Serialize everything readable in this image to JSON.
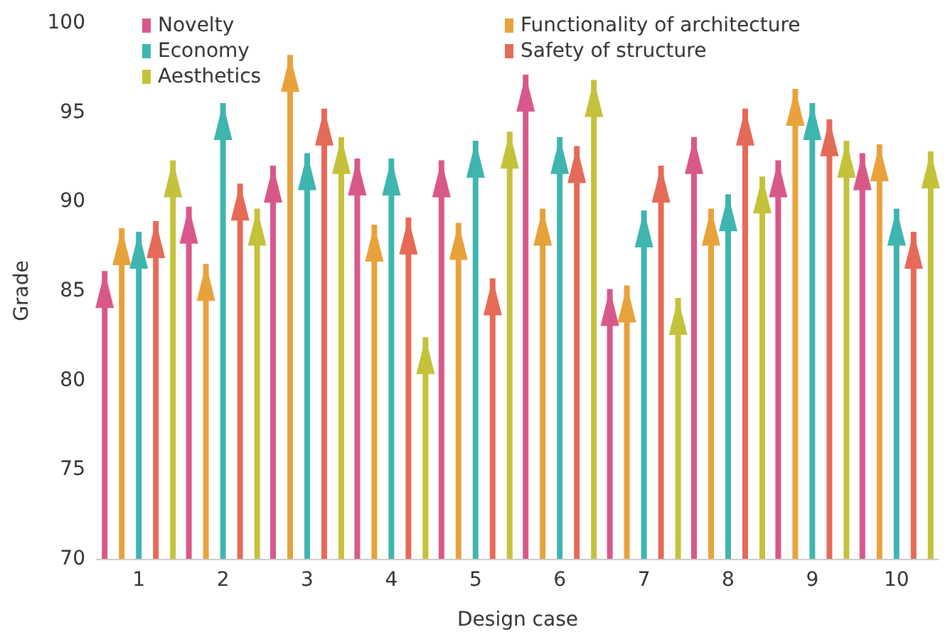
{
  "chart_data": {
    "type": "bar",
    "xlabel": "Design case",
    "ylabel": "Grade",
    "categories": [
      "1",
      "2",
      "3",
      "4",
      "5",
      "6",
      "7",
      "8",
      "9",
      "10"
    ],
    "ylim": [
      70,
      100
    ],
    "yticks": [
      70,
      75,
      80,
      85,
      90,
      95,
      100
    ],
    "legend": "top left",
    "series": [
      {
        "name": "Novelty",
        "color": "#d9588a",
        "values": [
          86.1,
          89.7,
          92.0,
          92.4,
          92.3,
          97.1,
          85.1,
          93.6,
          92.3,
          92.7
        ]
      },
      {
        "name": "Functionality of architecture",
        "color": "#e8a23c",
        "values": [
          88.5,
          86.5,
          98.2,
          88.7,
          88.8,
          89.6,
          85.3,
          89.6,
          96.3,
          93.2
        ]
      },
      {
        "name": "Economy",
        "color": "#3fb5b0",
        "values": [
          88.3,
          95.5,
          92.7,
          92.4,
          93.4,
          93.6,
          89.5,
          90.4,
          95.5,
          89.6
        ]
      },
      {
        "name": "Safety of structure",
        "color": "#e56a57",
        "values": [
          88.9,
          91.0,
          95.2,
          89.1,
          85.7,
          93.1,
          92.0,
          95.2,
          94.6,
          88.3
        ]
      },
      {
        "name": "Aesthetics",
        "color": "#c4c23a",
        "values": [
          92.3,
          89.6,
          93.6,
          82.4,
          93.9,
          96.8,
          84.6,
          91.4,
          93.4,
          92.8
        ]
      }
    ]
  }
}
